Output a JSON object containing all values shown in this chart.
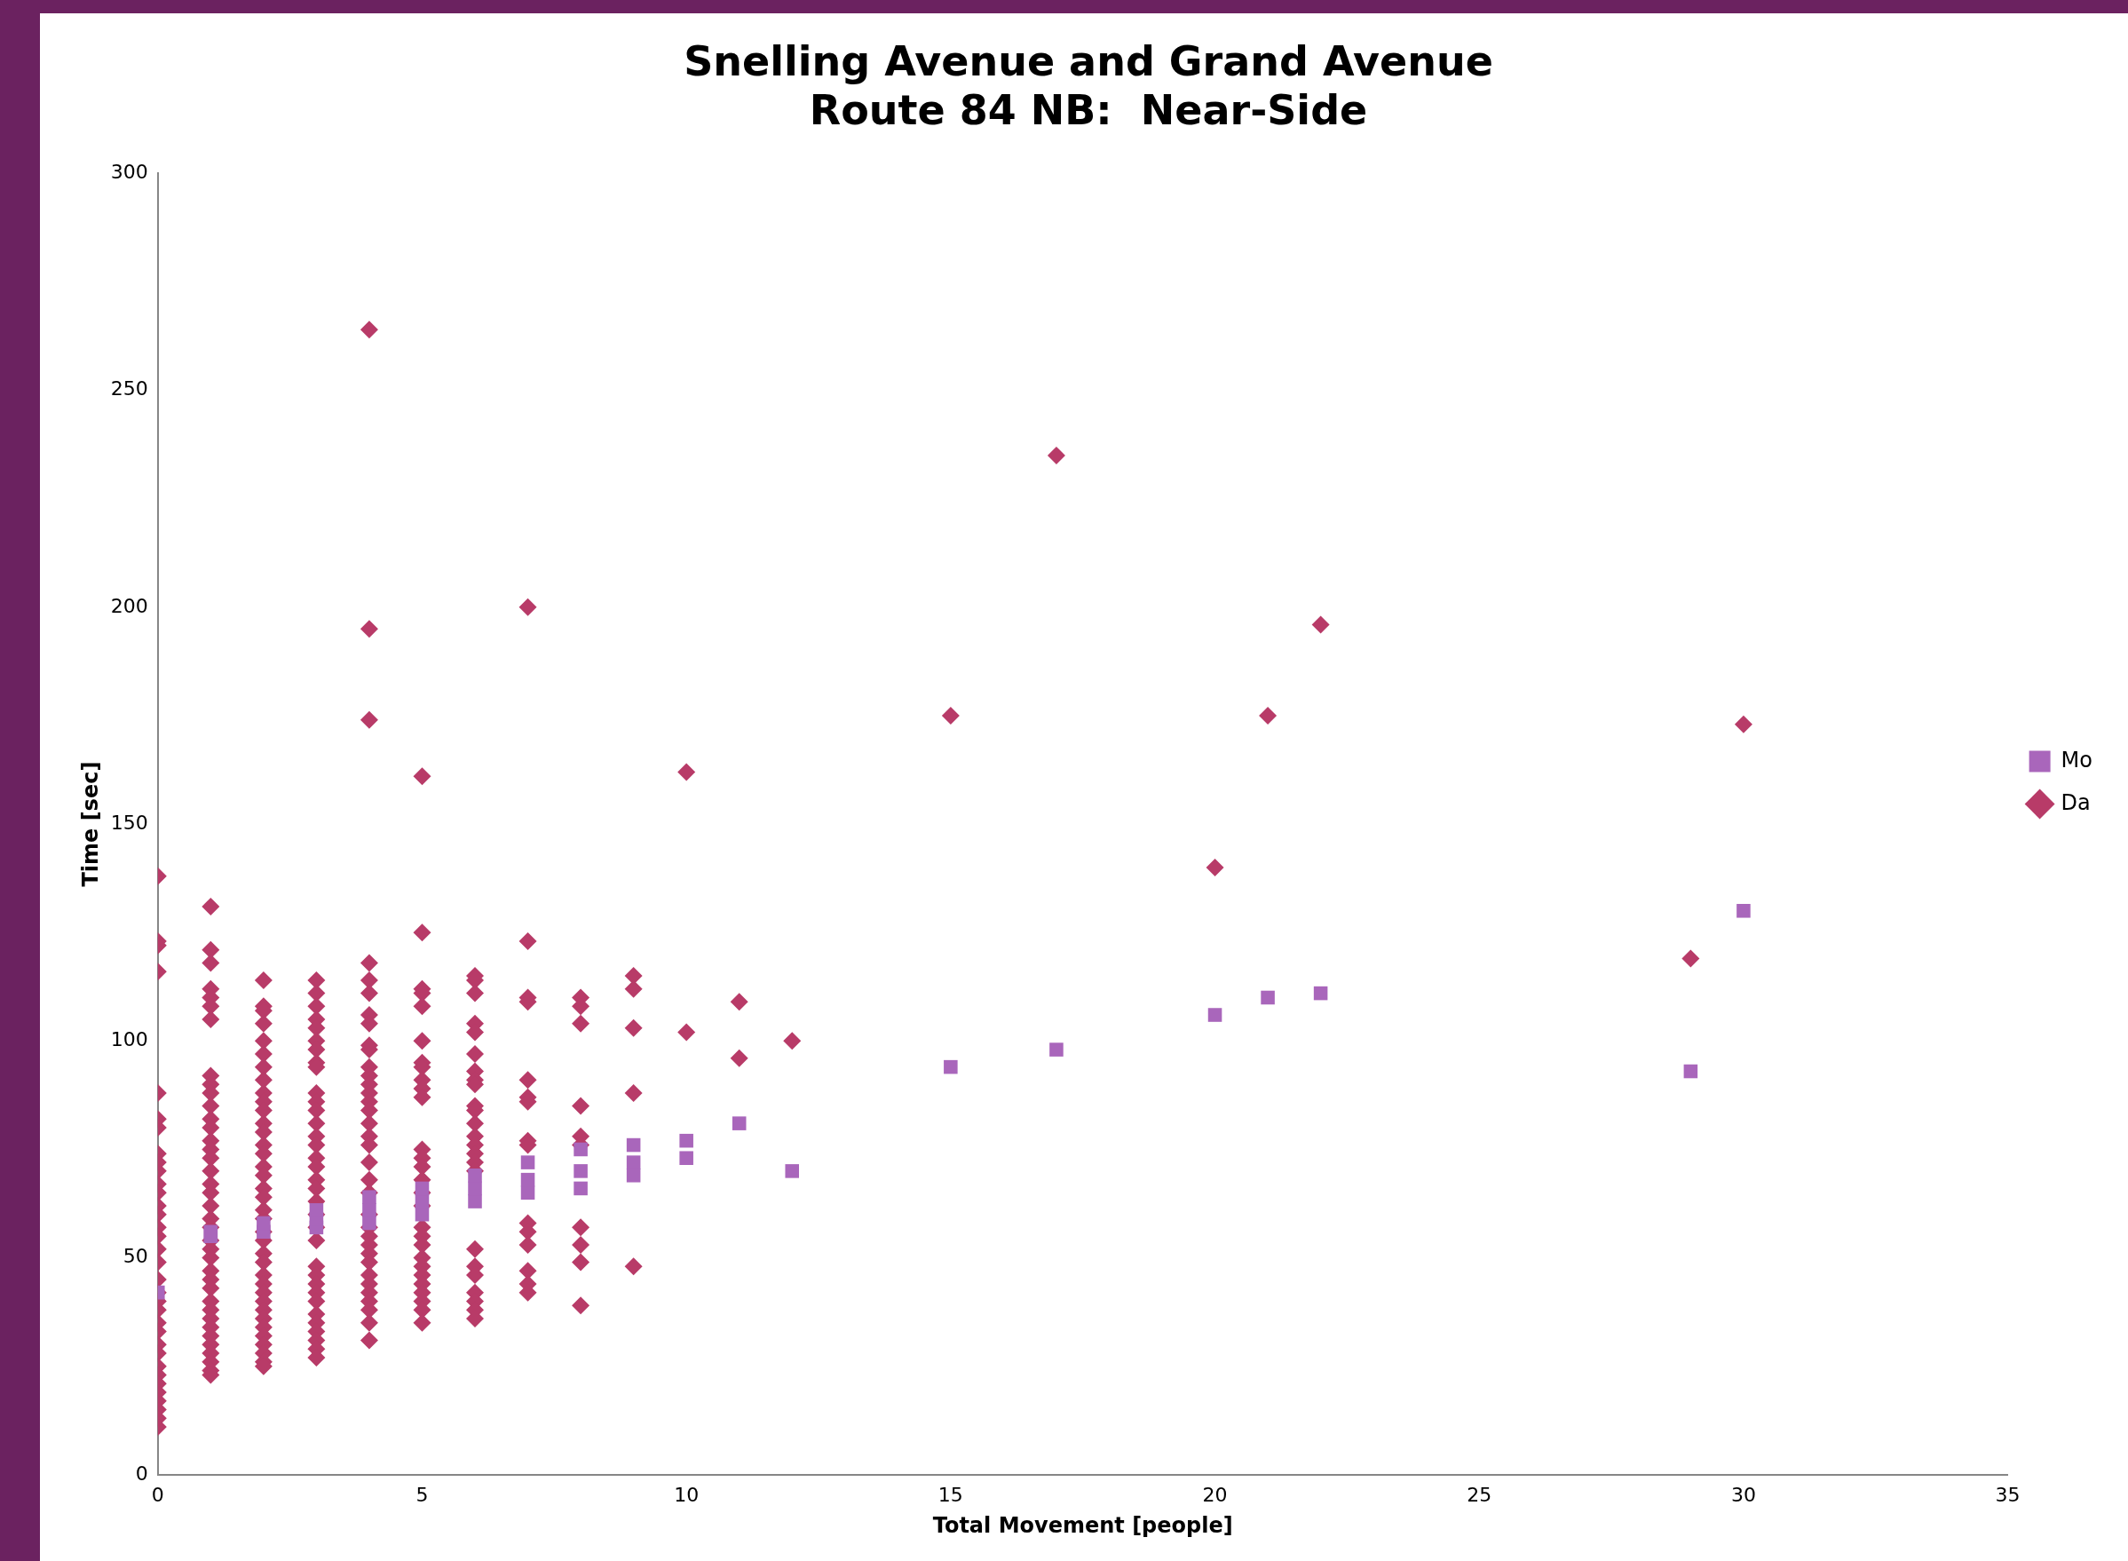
{
  "chart_data": {
    "type": "scatter",
    "title": "Snelling Avenue and Grand Avenue\nRoute 84 NB:  Near-Side",
    "xlabel": "Total Movement [people]",
    "ylabel": "Time [sec]",
    "xlim": [
      0,
      35
    ],
    "xticks": [
      0,
      5,
      10,
      15,
      20,
      25,
      30,
      35
    ],
    "ylim": [
      0,
      300
    ],
    "yticks": [
      0,
      50,
      100,
      150,
      200,
      250,
      300
    ],
    "grid": false,
    "legend": "right",
    "series": [
      {
        "name": "Da",
        "color": "#b83b68",
        "marker": "diamond",
        "x": [
          0,
          0,
          0,
          0,
          0,
          0,
          0,
          0,
          0,
          0,
          0,
          0,
          0,
          0,
          0,
          0,
          0,
          0,
          0,
          0,
          0,
          0,
          0,
          0,
          0,
          0,
          0,
          0,
          0,
          0,
          0,
          0,
          0,
          0,
          1,
          1,
          1,
          1,
          1,
          1,
          1,
          1,
          1,
          1,
          1,
          1,
          1,
          1,
          1,
          1,
          1,
          1,
          1,
          1,
          1,
          1,
          1,
          1,
          1,
          1,
          1,
          1,
          1,
          1,
          1,
          1,
          1,
          1,
          1,
          1,
          1,
          1,
          2,
          2,
          2,
          2,
          2,
          2,
          2,
          2,
          2,
          2,
          2,
          2,
          2,
          2,
          2,
          2,
          2,
          2,
          2,
          2,
          2,
          2,
          2,
          2,
          2,
          2,
          2,
          2,
          2,
          2,
          2,
          2,
          2,
          2,
          2,
          2,
          2,
          3,
          3,
          3,
          3,
          3,
          3,
          3,
          3,
          3,
          3,
          3,
          3,
          3,
          3,
          3,
          3,
          3,
          3,
          3,
          3,
          3,
          3,
          3,
          3,
          3,
          3,
          3,
          3,
          3,
          3,
          3,
          3,
          3,
          3,
          4,
          4,
          4,
          4,
          4,
          4,
          4,
          4,
          4,
          4,
          4,
          4,
          4,
          4,
          4,
          4,
          4,
          4,
          4,
          4,
          4,
          4,
          4,
          4,
          4,
          4,
          4,
          4,
          4,
          4,
          4,
          4,
          4,
          4,
          4,
          5,
          5,
          5,
          5,
          5,
          5,
          5,
          5,
          5,
          5,
          5,
          5,
          5,
          5,
          5,
          5,
          5,
          5,
          5,
          5,
          5,
          5,
          5,
          5,
          5,
          5,
          5,
          5,
          6,
          6,
          6,
          6,
          6,
          6,
          6,
          6,
          6,
          6,
          6,
          6,
          6,
          6,
          6,
          6,
          6,
          6,
          6,
          6,
          6,
          6,
          6,
          6,
          7,
          7,
          7,
          7,
          7,
          7,
          7,
          7,
          7,
          7,
          7,
          7,
          7,
          7,
          7,
          8,
          8,
          8,
          8,
          8,
          8,
          8,
          8,
          8,
          8,
          9,
          9,
          9,
          9,
          9,
          10,
          10,
          11,
          11,
          12,
          15,
          17,
          20,
          21,
          22,
          29,
          30
        ],
        "values": [
          138,
          123,
          122,
          116,
          88,
          82,
          80,
          74,
          72,
          70,
          67,
          65,
          62,
          60,
          57,
          55,
          52,
          49,
          45,
          42,
          40,
          38,
          35,
          33,
          30,
          28,
          25,
          23,
          21,
          19,
          17,
          15,
          13,
          11,
          131,
          121,
          118,
          112,
          110,
          108,
          105,
          92,
          90,
          88,
          85,
          82,
          80,
          77,
          75,
          73,
          70,
          67,
          65,
          62,
          59,
          57,
          54,
          52,
          50,
          47,
          45,
          43,
          40,
          38,
          36,
          34,
          32,
          30,
          28,
          26,
          24,
          23,
          114,
          108,
          107,
          104,
          100,
          97,
          94,
          91,
          88,
          86,
          84,
          81,
          79,
          76,
          74,
          71,
          69,
          66,
          64,
          61,
          59,
          56,
          54,
          51,
          49,
          46,
          44,
          42,
          40,
          38,
          36,
          34,
          32,
          30,
          28,
          26,
          25,
          114,
          111,
          108,
          105,
          103,
          100,
          98,
          95,
          94,
          88,
          86,
          84,
          81,
          78,
          76,
          73,
          71,
          68,
          66,
          63,
          60,
          57,
          54,
          48,
          46,
          44,
          42,
          40,
          37,
          35,
          33,
          31,
          29,
          27,
          264,
          195,
          174,
          118,
          114,
          111,
          106,
          104,
          99,
          98,
          94,
          92,
          90,
          88,
          86,
          84,
          81,
          78,
          76,
          72,
          68,
          65,
          60,
          57,
          55,
          53,
          51,
          49,
          46,
          44,
          42,
          40,
          38,
          35,
          31,
          161,
          125,
          112,
          111,
          108,
          100,
          95,
          94,
          91,
          89,
          87,
          75,
          73,
          71,
          68,
          65,
          62,
          57,
          55,
          53,
          50,
          48,
          46,
          44,
          42,
          40,
          38,
          35,
          115,
          114,
          111,
          104,
          102,
          97,
          93,
          91,
          90,
          85,
          84,
          81,
          78,
          76,
          74,
          72,
          70,
          52,
          48,
          46,
          42,
          40,
          38,
          36,
          200,
          123,
          110,
          109,
          91,
          87,
          86,
          77,
          76,
          58,
          56,
          53,
          47,
          44,
          42,
          110,
          108,
          104,
          85,
          78,
          76,
          57,
          53,
          49,
          39,
          115,
          112,
          103,
          88,
          48,
          162,
          102,
          109,
          96,
          100,
          175,
          235,
          140,
          175,
          196,
          119,
          173
        ]
      },
      {
        "name": "Mo",
        "color": "#a966bb",
        "marker": "square",
        "x": [
          0,
          1,
          1,
          2,
          2,
          3,
          3,
          3,
          4,
          4,
          4,
          5,
          5,
          5,
          6,
          6,
          6,
          7,
          7,
          7,
          8,
          8,
          8,
          9,
          9,
          9,
          10,
          10,
          11,
          12,
          15,
          17,
          20,
          21,
          22,
          29,
          30
        ],
        "values": [
          42,
          55,
          56,
          56,
          58,
          57,
          59,
          61,
          58,
          61,
          64,
          60,
          63,
          66,
          63,
          66,
          69,
          65,
          68,
          72,
          66,
          70,
          75,
          69,
          72,
          76,
          73,
          77,
          81,
          70,
          94,
          98,
          106,
          110,
          111,
          93,
          130
        ]
      }
    ]
  }
}
